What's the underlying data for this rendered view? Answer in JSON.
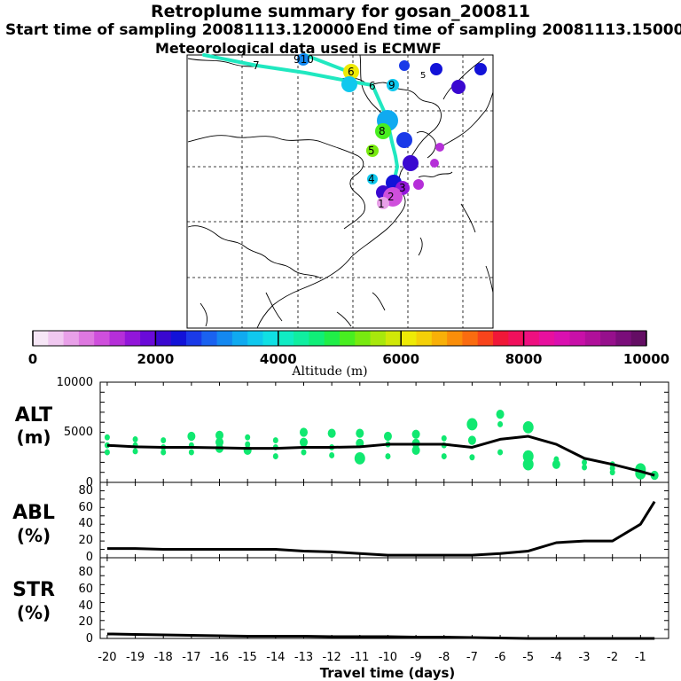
{
  "header": {
    "title": "Retroplume summary for gosan_200811",
    "start": "Start time of sampling 20081113.120000",
    "end": "End time of sampling 20081113.150000",
    "met": "Meteorological data used is ECMWF"
  },
  "colorbar": {
    "label": "Altitude (m)",
    "ticks": [
      "0",
      "2000",
      "4000",
      "6000",
      "8000",
      "10000"
    ],
    "range": [
      0,
      10000
    ],
    "colors": [
      "#f6e6f6",
      "#f0c8f0",
      "#e8a0e8",
      "#de78e0",
      "#cf4fdc",
      "#b52fd8",
      "#9216d9",
      "#6a0ad8",
      "#3a08d0",
      "#1212d8",
      "#1a3ae8",
      "#1a62f0",
      "#1488f0",
      "#10aaf0",
      "#10c8ee",
      "#10e0e4",
      "#10ecc4",
      "#10eea0",
      "#10ee78",
      "#20ee48",
      "#48ee20",
      "#78ea10",
      "#a8e80c",
      "#d0e808",
      "#eeea06",
      "#f4d008",
      "#f8b008",
      "#fa8e0a",
      "#fa6c10",
      "#f8441c",
      "#f01838",
      "#f0105c",
      "#ee1080",
      "#e8109e",
      "#da10b0",
      "#c810a8",
      "#b0109a",
      "#96108c",
      "#7a0e7a",
      "#640e64"
    ]
  },
  "map_labels": {
    "markers": [
      "6",
      "6",
      "9",
      "7",
      "910",
      "5",
      "4",
      "3",
      "2",
      "1",
      "5",
      "8"
    ]
  },
  "panels": {
    "alt": {
      "label1": "ALT",
      "label2": "(m)",
      "ticks": [
        "10000",
        "5000",
        "0"
      ]
    },
    "abl": {
      "label1": "ABL",
      "label2": "(%)",
      "ticks": [
        "80",
        "60",
        "40",
        "20",
        "0"
      ]
    },
    "str": {
      "label1": "STR",
      "label2": "(%)",
      "ticks": [
        "80",
        "60",
        "40",
        "20",
        "0"
      ]
    }
  },
  "chart_data": [
    {
      "type": "line",
      "title": "ALT (m)",
      "xlabel": "Travel time (days)",
      "ylabel": "ALT (m)",
      "xlim": [
        -20.25,
        0
      ],
      "ylim": [
        0,
        10000
      ],
      "x": [
        -20,
        -19,
        -18,
        -17,
        -16,
        -15,
        -14,
        -13,
        -12,
        -11,
        -10,
        -9,
        -8,
        -7,
        -6,
        -5,
        -4,
        -3,
        -2,
        -1,
        -0.5
      ],
      "series": [
        {
          "name": "median altitude",
          "values": [
            3700,
            3550,
            3500,
            3500,
            3450,
            3400,
            3400,
            3500,
            3500,
            3550,
            3800,
            3800,
            3800,
            3500,
            4300,
            4600,
            3800,
            2400,
            1800,
            1100,
            700
          ]
        }
      ],
      "scatter_clusters": [
        {
          "x": -20,
          "values": [
            4500,
            3700,
            3000
          ]
        },
        {
          "x": -19,
          "values": [
            4300,
            3700,
            3100
          ]
        },
        {
          "x": -18,
          "values": [
            4200,
            3500,
            3000
          ]
        },
        {
          "x": -17,
          "values": [
            4600,
            3700,
            3000
          ]
        },
        {
          "x": -16,
          "values": [
            4700,
            4000,
            3400
          ]
        },
        {
          "x": -15,
          "values": [
            4500,
            3800,
            3200
          ]
        },
        {
          "x": -14,
          "values": [
            4200,
            3500,
            2600
          ]
        },
        {
          "x": -13,
          "values": [
            5000,
            4000,
            3000
          ]
        },
        {
          "x": -12,
          "values": [
            4900,
            3500,
            2700
          ]
        },
        {
          "x": -11,
          "values": [
            4900,
            3900,
            2400
          ]
        },
        {
          "x": -10,
          "values": [
            4600,
            3800,
            2600
          ]
        },
        {
          "x": -9,
          "values": [
            4800,
            3900,
            3200
          ]
        },
        {
          "x": -8,
          "values": [
            4400,
            3700,
            2600
          ]
        },
        {
          "x": -7,
          "values": [
            5800,
            4200,
            2500
          ]
        },
        {
          "x": -6,
          "values": [
            6800,
            5800,
            3000
          ]
        },
        {
          "x": -5,
          "values": [
            5500,
            2600,
            1800
          ]
        },
        {
          "x": -4,
          "values": [
            2300,
            1800
          ]
        },
        {
          "x": -3,
          "values": [
            2000,
            1500
          ]
        },
        {
          "x": -2,
          "values": [
            1800,
            1400,
            1000
          ]
        },
        {
          "x": -1,
          "values": [
            1300,
            900
          ]
        },
        {
          "x": -0.5,
          "values": [
            700
          ]
        }
      ]
    },
    {
      "type": "line",
      "title": "ABL (%)",
      "xlabel": "Travel time (days)",
      "ylabel": "ABL (%)",
      "xlim": [
        -20.25,
        0
      ],
      "ylim": [
        0,
        90
      ],
      "x": [
        -20,
        -19,
        -18,
        -17,
        -16,
        -15,
        -14,
        -13,
        -12,
        -11,
        -10,
        -9,
        -8,
        -7,
        -6,
        -5,
        -4,
        -3,
        -2,
        -1,
        -0.5
      ],
      "series": [
        {
          "name": "ABL fraction",
          "values": [
            11,
            11,
            10,
            10,
            10,
            10,
            10,
            8,
            7,
            5,
            3,
            3,
            3,
            3,
            5,
            8,
            18,
            20,
            20,
            40,
            67
          ]
        }
      ]
    },
    {
      "type": "line",
      "title": "STR (%)",
      "xlabel": "Travel time (days)",
      "ylabel": "STR (%)",
      "xlim": [
        -20.25,
        0
      ],
      "ylim": [
        0,
        90
      ],
      "x": [
        -20,
        -19,
        -18,
        -17,
        -16,
        -15,
        -14,
        -13,
        -12,
        -11,
        -10,
        -9,
        -8,
        -7,
        -6,
        -5,
        -4,
        -3,
        -2,
        -1,
        -0.5
      ],
      "series": [
        {
          "name": "STR fraction",
          "values": [
            5,
            4.5,
            4,
            3.5,
            3,
            2.5,
            2.5,
            2.5,
            2,
            2,
            2,
            1.5,
            1.5,
            1,
            0.5,
            0,
            0,
            0,
            0,
            0,
            0
          ]
        }
      ]
    }
  ],
  "x_axis": {
    "label": "Travel time (days)",
    "ticks": [
      "-20",
      "-19",
      "-18",
      "-17",
      "-16",
      "-15",
      "-14",
      "-13",
      "-12",
      "-11",
      "-10",
      "-9",
      "-8",
      "-7",
      "-6",
      "-5",
      "-4",
      "-3",
      "-2",
      "-1"
    ]
  }
}
